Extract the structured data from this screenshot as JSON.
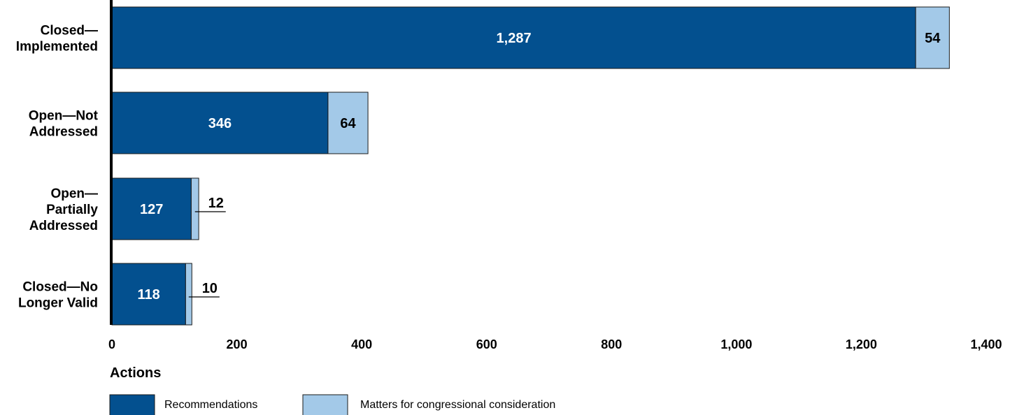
{
  "chart_data": {
    "type": "bar",
    "orientation": "horizontal",
    "stacked": true,
    "categories": [
      [
        "Closed—",
        "Implemented"
      ],
      [
        "Open—Not",
        "Addressed"
      ],
      [
        "Open—",
        "Partially",
        "Addressed"
      ],
      [
        "Closed—No",
        "Longer Valid"
      ]
    ],
    "series": [
      {
        "name": "Recommendations",
        "color": "#03508f",
        "label_color": "#ffffff",
        "values": [
          1287,
          346,
          127,
          118
        ],
        "value_labels": [
          "1,287",
          "346",
          "127",
          "118"
        ]
      },
      {
        "name": "Matters for congressional consideration",
        "color": "#a3c9e8",
        "label_color": "#000000",
        "values": [
          54,
          64,
          12,
          10
        ],
        "value_labels": [
          "54",
          "64",
          "12",
          "10"
        ]
      }
    ],
    "xlabel": "Actions",
    "xlim": [
      0,
      1400
    ],
    "xticks": [
      0,
      200,
      400,
      600,
      800,
      1000,
      1200,
      1400
    ],
    "xtick_labels": [
      "0",
      "200",
      "400",
      "600",
      "800",
      "1,000",
      "1,200",
      "1,400"
    ],
    "grid": false,
    "legend_position": "bottom-left"
  }
}
